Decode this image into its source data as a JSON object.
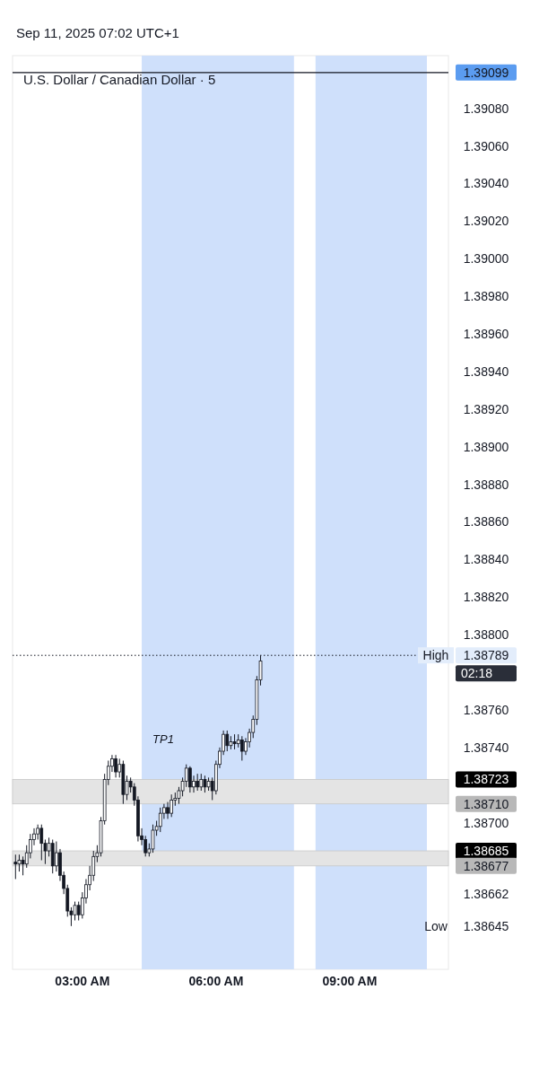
{
  "chart_data": {
    "type": "candlestick",
    "title": "U.S. Dollar / Canadian Dollar · 5",
    "subtitle": "Sep 11, 2025 07:02 UTC+1",
    "color": "#131722",
    "x": [
      "2025-09-11T01:30",
      "2025-09-11T01:35",
      "2025-09-11T01:40",
      "2025-09-11T01:45",
      "2025-09-11T01:50",
      "2025-09-11T01:55",
      "2025-09-11T02:00",
      "2025-09-11T02:05",
      "2025-09-11T02:10",
      "2025-09-11T02:15",
      "2025-09-11T02:20",
      "2025-09-11T02:25",
      "2025-09-11T02:30",
      "2025-09-11T02:35",
      "2025-09-11T02:40",
      "2025-09-11T02:45",
      "2025-09-11T02:50",
      "2025-09-11T02:55",
      "2025-09-11T03:00",
      "2025-09-11T03:05",
      "2025-09-11T03:10",
      "2025-09-11T03:15",
      "2025-09-11T03:20",
      "2025-09-11T03:25",
      "2025-09-11T03:30",
      "2025-09-11T03:35",
      "2025-09-11T03:40",
      "2025-09-11T03:45",
      "2025-09-11T03:50",
      "2025-09-11T03:55",
      "2025-09-11T04:00",
      "2025-09-11T04:05",
      "2025-09-11T04:10",
      "2025-09-11T04:15",
      "2025-09-11T04:20",
      "2025-09-11T04:25",
      "2025-09-11T04:30",
      "2025-09-11T04:35",
      "2025-09-11T04:40",
      "2025-09-11T04:45",
      "2025-09-11T04:50",
      "2025-09-11T04:55",
      "2025-09-11T05:00",
      "2025-09-11T05:05",
      "2025-09-11T05:10",
      "2025-09-11T05:15",
      "2025-09-11T05:20",
      "2025-09-11T05:25",
      "2025-09-11T05:30",
      "2025-09-11T05:35",
      "2025-09-11T05:40",
      "2025-09-11T05:45",
      "2025-09-11T05:50",
      "2025-09-11T05:55",
      "2025-09-11T06:00",
      "2025-09-11T06:05",
      "2025-09-11T06:10",
      "2025-09-11T06:15",
      "2025-09-11T06:20",
      "2025-09-11T06:25",
      "2025-09-11T06:30",
      "2025-09-11T06:35",
      "2025-09-11T06:40",
      "2025-09-11T06:45",
      "2025-09-11T06:50",
      "2025-09-11T06:55",
      "2025-09-11T07:00"
    ],
    "ohlc": [
      [
        1.38679,
        1.38683,
        1.3867,
        1.38678
      ],
      [
        1.38678,
        1.38683,
        1.38674,
        1.3868
      ],
      [
        1.3868,
        1.38682,
        1.38672,
        1.38678
      ],
      [
        1.38678,
        1.38688,
        1.38676,
        1.38684
      ],
      [
        1.38684,
        1.38694,
        1.38681,
        1.38691
      ],
      [
        1.38691,
        1.38697,
        1.38688,
        1.38694
      ],
      [
        1.38694,
        1.38699,
        1.38691,
        1.38697
      ],
      [
        1.38697,
        1.38699,
        1.3868,
        1.38689
      ],
      [
        1.38689,
        1.38691,
        1.38678,
        1.38685
      ],
      [
        1.38685,
        1.38692,
        1.38682,
        1.38689
      ],
      [
        1.38689,
        1.38691,
        1.38673,
        1.38677
      ],
      [
        1.38677,
        1.3869,
        1.38674,
        1.38684
      ],
      [
        1.38684,
        1.38686,
        1.38669,
        1.38672
      ],
      [
        1.38672,
        1.38674,
        1.38662,
        1.38665
      ],
      [
        1.38665,
        1.38667,
        1.3865,
        1.38653
      ],
      [
        1.38653,
        1.38655,
        1.38645,
        1.38651
      ],
      [
        1.38651,
        1.38658,
        1.38648,
        1.38656
      ],
      [
        1.38656,
        1.38658,
        1.38648,
        1.38651
      ],
      [
        1.38651,
        1.38663,
        1.38649,
        1.3866
      ],
      [
        1.3866,
        1.3867,
        1.38657,
        1.38667
      ],
      [
        1.38667,
        1.38677,
        1.38664,
        1.38672
      ],
      [
        1.38672,
        1.38685,
        1.38669,
        1.38682
      ],
      [
        1.38682,
        1.38688,
        1.38679,
        1.38684
      ],
      [
        1.38684,
        1.38703,
        1.38682,
        1.38701
      ],
      [
        1.38701,
        1.38726,
        1.38699,
        1.38723
      ],
      [
        1.38723,
        1.38733,
        1.3872,
        1.3873
      ],
      [
        1.3873,
        1.38736,
        1.38727,
        1.38734
      ],
      [
        1.38734,
        1.38736,
        1.38724,
        1.38727
      ],
      [
        1.38727,
        1.38734,
        1.38724,
        1.38731
      ],
      [
        1.38731,
        1.38733,
        1.3871,
        1.38715
      ],
      [
        1.38715,
        1.38725,
        1.38712,
        1.38722
      ],
      [
        1.38722,
        1.38724,
        1.38716,
        1.38719
      ],
      [
        1.38719,
        1.38721,
        1.38709,
        1.38712
      ],
      [
        1.38712,
        1.38714,
        1.3869,
        1.38693
      ],
      [
        1.38693,
        1.38697,
        1.38688,
        1.38691
      ],
      [
        1.38691,
        1.38693,
        1.38682,
        1.38684
      ],
      [
        1.38684,
        1.38689,
        1.38682,
        1.38686
      ],
      [
        1.38686,
        1.38699,
        1.38684,
        1.38696
      ],
      [
        1.38696,
        1.38701,
        1.38693,
        1.38698
      ],
      [
        1.38698,
        1.38708,
        1.38695,
        1.38705
      ],
      [
        1.38705,
        1.3871,
        1.38702,
        1.38708
      ],
      [
        1.38708,
        1.38711,
        1.38702,
        1.38705
      ],
      [
        1.38705,
        1.38715,
        1.38703,
        1.38712
      ],
      [
        1.38712,
        1.38716,
        1.38709,
        1.38713
      ],
      [
        1.38713,
        1.38719,
        1.3871,
        1.38717
      ],
      [
        1.38717,
        1.38724,
        1.38714,
        1.38722
      ],
      [
        1.38722,
        1.38731,
        1.38719,
        1.38729
      ],
      [
        1.38729,
        1.3873,
        1.38716,
        1.38719
      ],
      [
        1.38719,
        1.38725,
        1.38716,
        1.38722
      ],
      [
        1.38722,
        1.38726,
        1.38717,
        1.38719
      ],
      [
        1.38719,
        1.38726,
        1.38717,
        1.38723
      ],
      [
        1.38723,
        1.38725,
        1.38716,
        1.38719
      ],
      [
        1.38719,
        1.38724,
        1.38717,
        1.38722
      ],
      [
        1.38722,
        1.38724,
        1.38712,
        1.38717
      ],
      [
        1.38717,
        1.38733,
        1.38715,
        1.38731
      ],
      [
        1.38731,
        1.3874,
        1.38729,
        1.38738
      ],
      [
        1.38738,
        1.38749,
        1.38736,
        1.38747
      ],
      [
        1.38747,
        1.38749,
        1.38738,
        1.38741
      ],
      [
        1.38741,
        1.38746,
        1.38739,
        1.38743
      ],
      [
        1.38743,
        1.38747,
        1.38739,
        1.38742
      ],
      [
        1.38742,
        1.38747,
        1.3874,
        1.38744
      ],
      [
        1.38744,
        1.38746,
        1.38733,
        1.38738
      ],
      [
        1.38738,
        1.38745,
        1.38736,
        1.38743
      ],
      [
        1.38743,
        1.3875,
        1.3874,
        1.38748
      ],
      [
        1.38748,
        1.38757,
        1.38745,
        1.38755
      ],
      [
        1.38755,
        1.38778,
        1.38752,
        1.38776
      ],
      [
        1.38776,
        1.38789,
        1.38773,
        1.38786
      ]
    ],
    "xlim": [
      "2025-09-11T01:26",
      "2025-09-11T11:13"
    ],
    "xticks": [
      {
        "value": "2025-09-11T03:00",
        "label": "03:00 AM"
      },
      {
        "value": "2025-09-11T06:00",
        "label": "06:00 AM"
      },
      {
        "value": "2025-09-11T09:00",
        "label": "09:00 AM"
      }
    ],
    "ylim": [
      1.38622,
      1.39108
    ],
    "yticks": [
      {
        "value": 1.39099,
        "label": "1.39099"
      },
      {
        "value": 1.38789,
        "label": "1.38789"
      },
      {
        "value": 1.38723,
        "label": "1.38723"
      },
      {
        "value": 1.3871,
        "label": "1.38710"
      },
      {
        "value": 1.38685,
        "label": "1.38685"
      },
      {
        "value": 1.38677,
        "label": "1.38677"
      },
      {
        "value": 1.3908,
        "label": "1.39080"
      },
      {
        "value": 1.3906,
        "label": "1.39060"
      },
      {
        "value": 1.3904,
        "label": "1.39040"
      },
      {
        "value": 1.3902,
        "label": "1.39020"
      },
      {
        "value": 1.39,
        "label": "1.39000"
      },
      {
        "value": 1.3898,
        "label": "1.38980"
      },
      {
        "value": 1.3896,
        "label": "1.38960"
      },
      {
        "value": 1.3894,
        "label": "1.38940"
      },
      {
        "value": 1.3892,
        "label": "1.38920"
      },
      {
        "value": 1.389,
        "label": "1.38900"
      },
      {
        "value": 1.3888,
        "label": "1.38880"
      },
      {
        "value": 1.3886,
        "label": "1.38860"
      },
      {
        "value": 1.3884,
        "label": "1.38840"
      },
      {
        "value": 1.3882,
        "label": "1.38820"
      },
      {
        "value": 1.388,
        "label": "1.38800"
      },
      {
        "value": 1.3876,
        "label": "1.38760"
      },
      {
        "value": 1.3874,
        "label": "1.38740"
      },
      {
        "value": 1.387,
        "label": "1.38700"
      },
      {
        "value": 1.38662,
        "label": "1.38662"
      },
      {
        "value": 1.38645,
        "label": "1.38645"
      }
    ],
    "bands": [
      {
        "axis": "x",
        "from": "2025-09-11T04:20",
        "to": "2025-09-11T07:45",
        "color": "#cfe0fb"
      },
      {
        "axis": "x",
        "from": "2025-09-11T08:14",
        "to": "2025-09-11T10:44",
        "color": "#cfe0fb"
      },
      {
        "axis": "y",
        "from": 1.3871,
        "to": 1.38723,
        "color": "#e4e4e4"
      },
      {
        "axis": "y",
        "from": 1.38677,
        "to": 1.38685,
        "color": "#e4e4e4"
      }
    ],
    "ref_lines": [
      {
        "axis": "y",
        "value": 1.39099,
        "color": "#131722",
        "line_style": "solid"
      },
      {
        "axis": "y",
        "value": 1.38789,
        "label": "High",
        "color": "#131722",
        "line_style": "dotted"
      }
    ],
    "annotations": [
      "TP1",
      "02:18",
      "Low"
    ],
    "grid": false
  }
}
